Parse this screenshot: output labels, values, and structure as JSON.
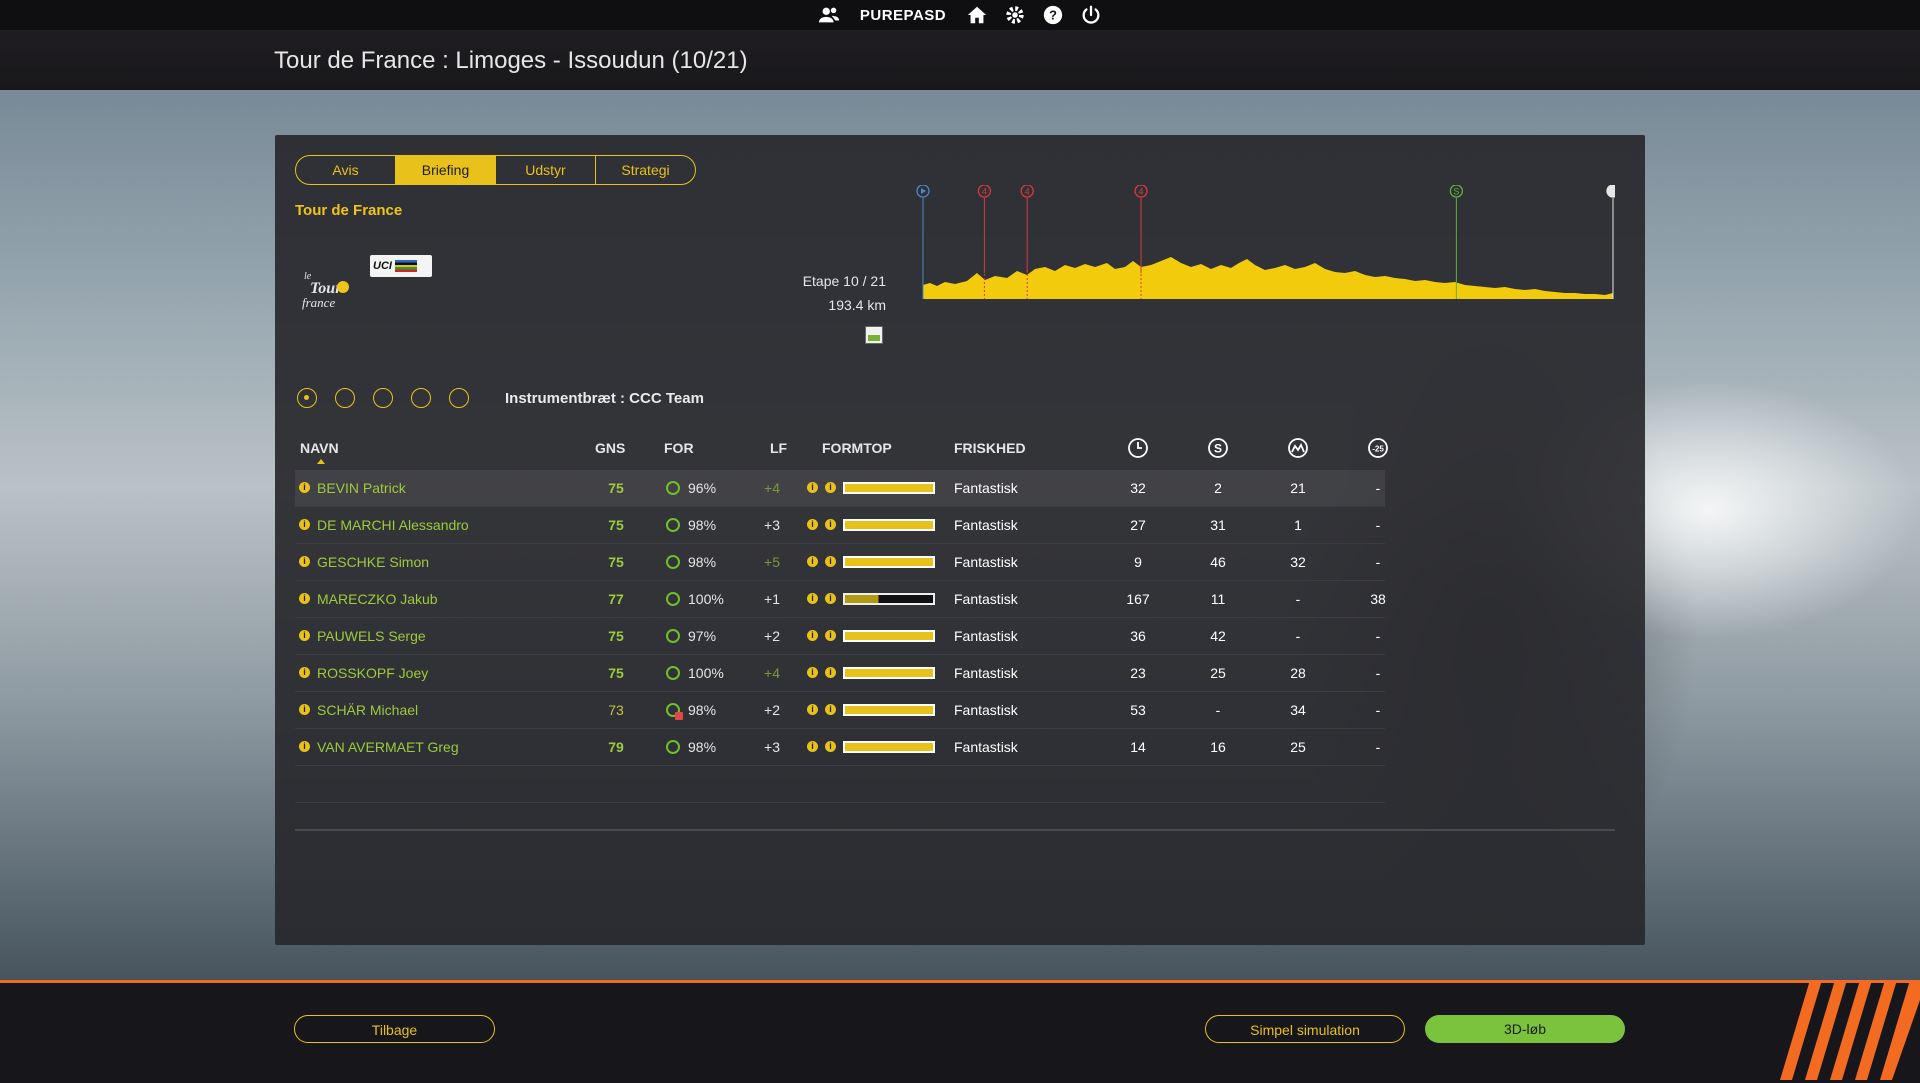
{
  "topbar": {
    "username": "PUREPASD",
    "icons": [
      "users-icon",
      "home-icon",
      "gear-icon",
      "help-icon",
      "power-icon"
    ]
  },
  "header": {
    "title": "Tour de France : Limoges - Issoudun (10/21)"
  },
  "tabs": [
    {
      "label": "Avis",
      "active": false
    },
    {
      "label": "Briefing",
      "active": true
    },
    {
      "label": "Udstyr",
      "active": false
    },
    {
      "label": "Strategi",
      "active": false
    }
  ],
  "race": {
    "name": "Tour de France",
    "stage": "Etape 10 / 21",
    "distance": "193.4 km",
    "uci_logo_text": "UCI"
  },
  "profile": {
    "markers": [
      {
        "type": "start",
        "label": "",
        "color": "#4c86c6",
        "pos": 0.0
      },
      {
        "type": "climb",
        "label": "4",
        "color": "#d43b3b",
        "pos": 0.089
      },
      {
        "type": "climb",
        "label": "4",
        "color": "#d43b3b",
        "pos": 0.151
      },
      {
        "type": "climb",
        "label": "4",
        "color": "#d43b3b",
        "pos": 0.316
      },
      {
        "type": "sprint",
        "label": "S",
        "color": "#5fae3a",
        "pos": 0.773
      },
      {
        "type": "finish",
        "label": "",
        "color": "#e6e6e6",
        "pos": 1.0
      }
    ]
  },
  "dashboard": {
    "label": "Instrumentbræt : CCC Team"
  },
  "table": {
    "headers": {
      "name": "NAVN",
      "gns": "GNS",
      "for": "FOR",
      "lf": "LF",
      "formtop": "FORMTOP",
      "frisk": "FRISKHED"
    },
    "header_icons": [
      "clock-icon",
      "sprint-icon",
      "mountain-icon",
      "under-25-icon"
    ],
    "u25_label": "-25",
    "rows": [
      {
        "name": "BEVIN Patrick",
        "gns": "75",
        "for": "96%",
        "lf": "+4",
        "formtop": 1.0,
        "frisk": "Fantastisk",
        "t": "32",
        "s": "2",
        "m": "21",
        "u": "-"
      },
      {
        "name": "DE MARCHI Alessandro",
        "gns": "75",
        "for": "98%",
        "lf": "+3",
        "formtop": 1.0,
        "frisk": "Fantastisk",
        "t": "27",
        "s": "31",
        "m": "1",
        "u": "-"
      },
      {
        "name": "GESCHKE Simon",
        "gns": "75",
        "for": "98%",
        "lf": "+5",
        "formtop": 1.0,
        "frisk": "Fantastisk",
        "t": "9",
        "s": "46",
        "m": "32",
        "u": "-"
      },
      {
        "name": "MARECZKO Jakub",
        "gns": "77",
        "for": "100%",
        "lf": "+1",
        "formtop": 0.38,
        "frisk": "Fantastisk",
        "t": "167",
        "s": "11",
        "m": "-",
        "u": "38"
      },
      {
        "name": "PAUWELS Serge",
        "gns": "75",
        "for": "97%",
        "lf": "+2",
        "formtop": 1.0,
        "frisk": "Fantastisk",
        "t": "36",
        "s": "42",
        "m": "-",
        "u": "-"
      },
      {
        "name": "ROSSKOPF Joey",
        "gns": "75",
        "for": "100%",
        "lf": "+4",
        "formtop": 1.0,
        "frisk": "Fantastisk",
        "t": "23",
        "s": "25",
        "m": "28",
        "u": "-"
      },
      {
        "name": "SCHÄR Michael",
        "gns": "73",
        "for": "98%",
        "lf": "+2",
        "formtop": 1.0,
        "frisk": "Fantastisk",
        "t": "53",
        "s": "-",
        "m": "34",
        "u": "-"
      },
      {
        "name": "VAN AVERMAET Greg",
        "gns": "79",
        "for": "98%",
        "lf": "+3",
        "formtop": 1.0,
        "frisk": "Fantastisk",
        "t": "14",
        "s": "16",
        "m": "25",
        "u": "-"
      }
    ]
  },
  "buttons": {
    "back": "Tilbage",
    "simple": "Simpel simulation",
    "three_d": "3D-løb"
  },
  "colors": {
    "accent": "#e8c11b",
    "green": "#7cc33d",
    "orange": "#f26b21",
    "name_green": "#9ccb3b"
  }
}
